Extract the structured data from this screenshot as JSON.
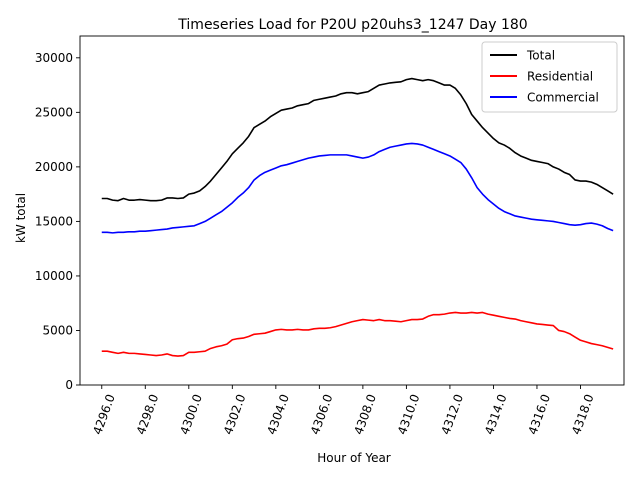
{
  "chart_data": {
    "type": "line",
    "title": "Timeseries Load for P20U p20uhs3_1247  Day 180",
    "xlabel": "Hour of Year",
    "ylabel": "kW total",
    "xlim": [
      4295.0,
      4320.0
    ],
    "ylim": [
      0,
      32000
    ],
    "legend_position": "top-right",
    "grid": false,
    "x_ticks": [
      4296,
      4298,
      4300,
      4302,
      4304,
      4306,
      4308,
      4310,
      4312,
      4314,
      4316,
      4318
    ],
    "x_tick_labels": [
      "4296.0",
      "4298.0",
      "4300.0",
      "4302.0",
      "4304.0",
      "4306.0",
      "4308.0",
      "4310.0",
      "4312.0",
      "4314.0",
      "4316.0",
      "4318.0"
    ],
    "y_ticks": [
      0,
      5000,
      10000,
      15000,
      20000,
      25000,
      30000
    ],
    "y_tick_labels": [
      "0",
      "5000",
      "10000",
      "15000",
      "20000",
      "25000",
      "30000"
    ],
    "x_start": 4296.0,
    "x_step": 0.25,
    "series": [
      {
        "name": "Total",
        "color": "#000000",
        "values": [
          17100,
          17100,
          16950,
          16900,
          17100,
          16950,
          16950,
          17000,
          16950,
          16900,
          16900,
          16950,
          17150,
          17150,
          17100,
          17150,
          17500,
          17600,
          17800,
          18200,
          18700,
          19300,
          19900,
          20500,
          21200,
          21700,
          22200,
          22800,
          23600,
          23900,
          24200,
          24600,
          24900,
          25200,
          25300,
          25400,
          25600,
          25700,
          25800,
          26100,
          26200,
          26300,
          26400,
          26500,
          26700,
          26800,
          26800,
          26700,
          26800,
          26900,
          27200,
          27500,
          27600,
          27700,
          27750,
          27800,
          28000,
          28100,
          28000,
          27900,
          28000,
          27900,
          27700,
          27500,
          27500,
          27200,
          26600,
          25800,
          24800,
          24200,
          23600,
          23100,
          22600,
          22200,
          22000,
          21700,
          21300,
          21000,
          20800,
          20600,
          20500,
          20400,
          20300,
          20000,
          19800,
          19500,
          19300,
          18800,
          18700,
          18700,
          18600,
          18400,
          18100,
          17800,
          17500
        ]
      },
      {
        "name": "Residential",
        "color": "#ff0000",
        "values": [
          3100,
          3100,
          3000,
          2900,
          3000,
          2900,
          2900,
          2850,
          2800,
          2750,
          2700,
          2750,
          2850,
          2700,
          2650,
          2700,
          3000,
          3000,
          3050,
          3100,
          3350,
          3500,
          3600,
          3750,
          4150,
          4250,
          4300,
          4450,
          4650,
          4700,
          4750,
          4900,
          5050,
          5100,
          5050,
          5050,
          5100,
          5050,
          5050,
          5150,
          5200,
          5200,
          5250,
          5350,
          5500,
          5650,
          5800,
          5900,
          6000,
          5950,
          5900,
          6000,
          5900,
          5900,
          5850,
          5800,
          5900,
          6000,
          6000,
          6050,
          6300,
          6450,
          6450,
          6500,
          6600,
          6650,
          6600,
          6600,
          6650,
          6600,
          6650,
          6500,
          6400,
          6300,
          6200,
          6100,
          6050,
          5900,
          5800,
          5700,
          5600,
          5550,
          5500,
          5450,
          5000,
          4900,
          4700,
          4400,
          4100,
          3950,
          3800,
          3700,
          3600,
          3450,
          3300
        ]
      },
      {
        "name": "Commercial",
        "color": "#0000ff",
        "values": [
          14000,
          14000,
          13950,
          14000,
          14000,
          14050,
          14050,
          14100,
          14100,
          14150,
          14200,
          14250,
          14300,
          14400,
          14450,
          14500,
          14550,
          14600,
          14800,
          15000,
          15300,
          15600,
          15900,
          16300,
          16700,
          17200,
          17600,
          18100,
          18800,
          19200,
          19500,
          19700,
          19900,
          20100,
          20200,
          20350,
          20500,
          20650,
          20800,
          20900,
          21000,
          21050,
          21100,
          21100,
          21100,
          21100,
          21000,
          20900,
          20800,
          20900,
          21100,
          21400,
          21600,
          21800,
          21900,
          22000,
          22100,
          22150,
          22100,
          22000,
          21800,
          21600,
          21400,
          21200,
          21000,
          20700,
          20400,
          19800,
          19000,
          18100,
          17500,
          17000,
          16600,
          16200,
          15900,
          15700,
          15500,
          15400,
          15300,
          15200,
          15150,
          15100,
          15050,
          15000,
          14900,
          14800,
          14700,
          14650,
          14700,
          14800,
          14850,
          14750,
          14600,
          14350,
          14150
        ]
      }
    ]
  }
}
